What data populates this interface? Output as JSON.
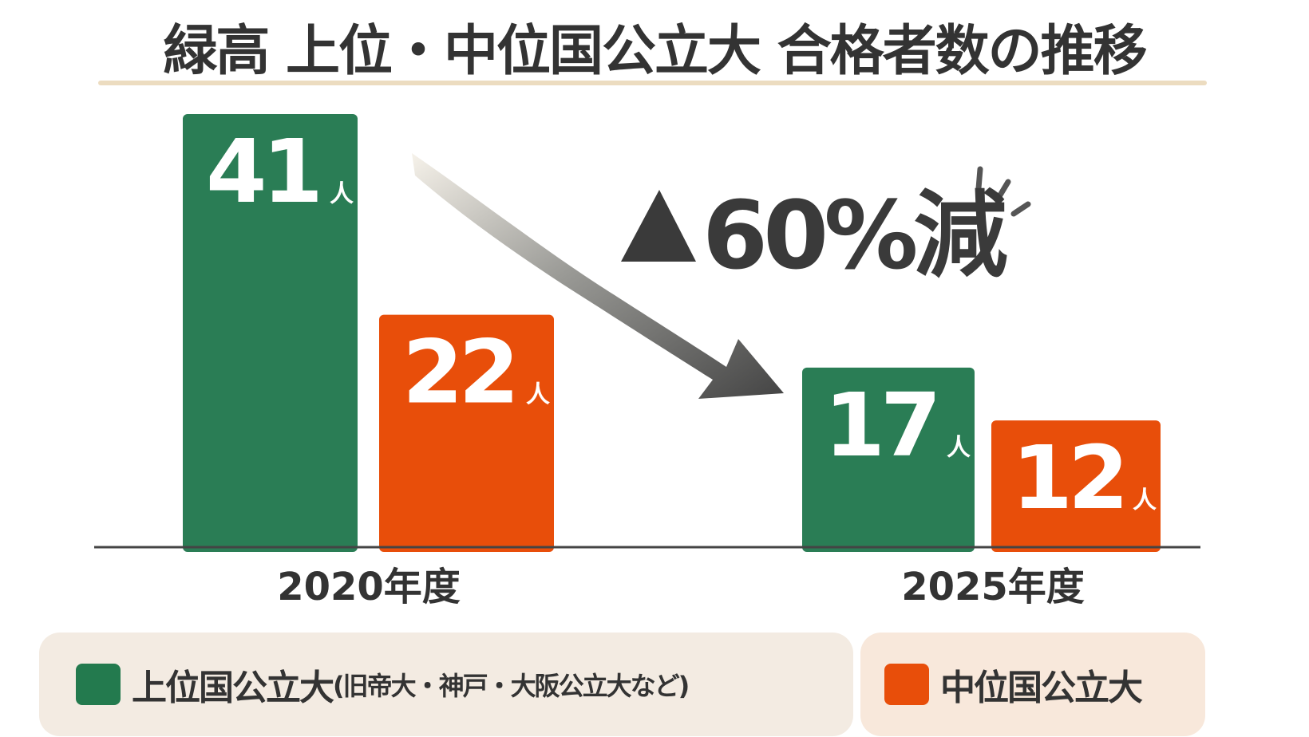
{
  "chart_data": {
    "type": "bar",
    "title": "緑高 上位・中位国公立大 合格者数の推移",
    "categories": [
      "2020年度",
      "2025年度"
    ],
    "unit": "人",
    "series": [
      {
        "name": "上位国公立大",
        "name_note": "(旧帝大・神戸・大阪公立大など)",
        "color": "#2a7d55",
        "values": [
          41,
          17
        ]
      },
      {
        "name": "中位国公立大",
        "color": "#e84e0a",
        "values": [
          22,
          12
        ]
      }
    ],
    "ylim": [
      0,
      41
    ],
    "grid": false,
    "legend_placement": "bottom",
    "annotation": {
      "marker": "▲",
      "text": "60%減"
    }
  }
}
